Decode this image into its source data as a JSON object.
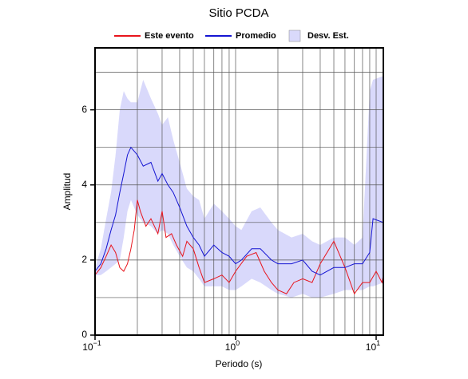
{
  "chart_data": {
    "type": "line",
    "title": "Sitio PCDA",
    "x_label": "Periodo (s)",
    "y_label": "Amplitud",
    "x_scale": "log",
    "xlim": [
      0.1,
      11.25
    ],
    "xticks": [
      {
        "value": 0.1,
        "label": "10",
        "sup": "−1"
      },
      {
        "value": 1,
        "label": "10",
        "sup": "0"
      },
      {
        "value": 10,
        "label": "10",
        "sup": "1"
      }
    ],
    "xminor": [
      0.2,
      0.3,
      0.4,
      0.5,
      0.6,
      0.7,
      0.8,
      0.9,
      2,
      3,
      4,
      5,
      6,
      7,
      8,
      9
    ],
    "ylim": [
      0,
      7.65
    ],
    "yticks": [
      0,
      2,
      4,
      6
    ],
    "yminor": [
      1,
      3,
      5,
      7
    ],
    "grid": true,
    "legend": "top",
    "band": {
      "name": "Desv. Est.",
      "color": "#d9d9fb",
      "x": [
        0.1,
        0.11,
        0.12,
        0.13,
        0.14,
        0.15,
        0.16,
        0.17,
        0.18,
        0.2,
        0.22,
        0.25,
        0.28,
        0.3,
        0.33,
        0.36,
        0.4,
        0.45,
        0.5,
        0.55,
        0.6,
        0.7,
        0.8,
        0.9,
        1.0,
        1.1,
        1.3,
        1.5,
        1.8,
        2.0,
        2.5,
        3.0,
        3.5,
        4.0,
        5.0,
        6.0,
        7.0,
        8.0,
        9.0,
        9.5,
        11.25
      ],
      "upper": [
        1.8,
        2.3,
        3.1,
        3.8,
        4.8,
        6.0,
        6.5,
        6.3,
        6.2,
        6.2,
        6.8,
        6.3,
        5.9,
        5.6,
        5.8,
        5.2,
        4.6,
        3.9,
        3.7,
        3.6,
        3.1,
        3.5,
        3.3,
        3.1,
        2.9,
        2.8,
        3.3,
        3.4,
        3.0,
        2.8,
        2.6,
        2.7,
        2.5,
        2.4,
        2.6,
        2.6,
        2.4,
        2.6,
        6.5,
        6.8,
        6.9
      ],
      "lower": [
        1.6,
        1.6,
        1.7,
        1.8,
        1.9,
        2.0,
        2.6,
        3.3,
        3.6,
        3.2,
        3.0,
        2.9,
        2.7,
        2.8,
        2.7,
        2.4,
        2.1,
        1.8,
        1.7,
        1.5,
        1.3,
        1.3,
        1.3,
        1.2,
        1.2,
        1.3,
        1.5,
        1.4,
        1.2,
        1.1,
        1.0,
        1.1,
        1.0,
        1.0,
        1.1,
        1.2,
        1.2,
        1.2,
        1.3,
        1.3,
        1.4
      ]
    },
    "series": [
      {
        "name": "Este evento",
        "color": "#e8141c",
        "x": [
          0.1,
          0.11,
          0.12,
          0.13,
          0.14,
          0.15,
          0.16,
          0.17,
          0.18,
          0.19,
          0.2,
          0.21,
          0.23,
          0.25,
          0.28,
          0.3,
          0.32,
          0.35,
          0.38,
          0.42,
          0.45,
          0.5,
          0.55,
          0.6,
          0.7,
          0.8,
          0.9,
          1.0,
          1.2,
          1.4,
          1.6,
          1.8,
          2.0,
          2.3,
          2.6,
          3.0,
          3.5,
          4.0,
          5.0,
          6.0,
          7.0,
          8.0,
          9.0,
          10.0,
          11.0,
          11.25
        ],
        "values": [
          1.6,
          1.8,
          2.1,
          2.4,
          2.2,
          1.8,
          1.7,
          1.9,
          2.3,
          2.8,
          3.6,
          3.3,
          2.9,
          3.1,
          2.7,
          3.3,
          2.6,
          2.7,
          2.4,
          2.1,
          2.5,
          2.3,
          1.8,
          1.4,
          1.5,
          1.6,
          1.4,
          1.7,
          2.1,
          2.2,
          1.7,
          1.4,
          1.2,
          1.1,
          1.4,
          1.5,
          1.4,
          1.9,
          2.5,
          1.8,
          1.1,
          1.4,
          1.4,
          1.7,
          1.4,
          1.6
        ]
      },
      {
        "name": "Promedio",
        "color": "#1414d2",
        "x": [
          0.1,
          0.11,
          0.12,
          0.13,
          0.14,
          0.15,
          0.16,
          0.17,
          0.18,
          0.2,
          0.22,
          0.25,
          0.28,
          0.3,
          0.33,
          0.36,
          0.4,
          0.45,
          0.5,
          0.55,
          0.6,
          0.7,
          0.8,
          0.9,
          1.0,
          1.1,
          1.3,
          1.5,
          1.8,
          2.0,
          2.5,
          3.0,
          3.5,
          4.0,
          5.0,
          6.0,
          7.0,
          8.0,
          9.0,
          9.5,
          11.25
        ],
        "values": [
          1.7,
          1.9,
          2.3,
          2.8,
          3.2,
          3.8,
          4.3,
          4.8,
          5.0,
          4.8,
          4.5,
          4.6,
          4.1,
          4.3,
          4.0,
          3.8,
          3.4,
          2.9,
          2.6,
          2.4,
          2.1,
          2.4,
          2.2,
          2.1,
          1.9,
          2.0,
          2.3,
          2.3,
          2.0,
          1.9,
          1.9,
          2.0,
          1.7,
          1.6,
          1.8,
          1.8,
          1.9,
          1.9,
          2.2,
          3.1,
          3.0
        ]
      }
    ]
  }
}
